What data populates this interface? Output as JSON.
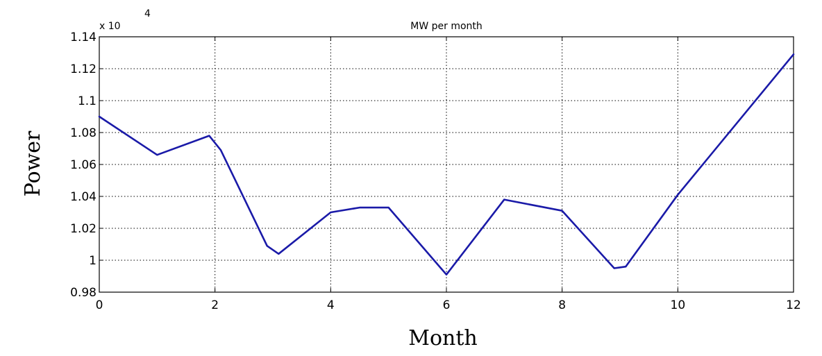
{
  "chart_data": {
    "type": "line",
    "title": "MW per month",
    "xlabel": "Month",
    "ylabel": "Power",
    "y_scale_factor": {
      "prefix": "x 10",
      "exponent": "4"
    },
    "xlim": [
      0,
      12
    ],
    "ylim": [
      0.98,
      1.14
    ],
    "x_ticks": [
      "0",
      "2",
      "4",
      "6",
      "8",
      "10",
      "12"
    ],
    "y_ticks": [
      "0.98",
      "1",
      "1.02",
      "1.04",
      "1.06",
      "1.08",
      "1.1",
      "1.12",
      "1.14"
    ],
    "grid": true,
    "grid_style": "dotted",
    "line_color": "#1a1aa8",
    "series": [
      {
        "x": [
          0,
          1,
          1.9,
          2.1,
          2.9,
          3.1,
          4,
          4.5,
          5,
          6,
          7,
          8,
          8.9,
          9.1,
          10,
          12
        ],
        "values": [
          1.09,
          1.066,
          1.078,
          1.069,
          1.009,
          1.004,
          1.03,
          1.033,
          1.033,
          0.991,
          1.038,
          1.031,
          0.995,
          0.996,
          1.041,
          1.129
        ]
      }
    ]
  }
}
